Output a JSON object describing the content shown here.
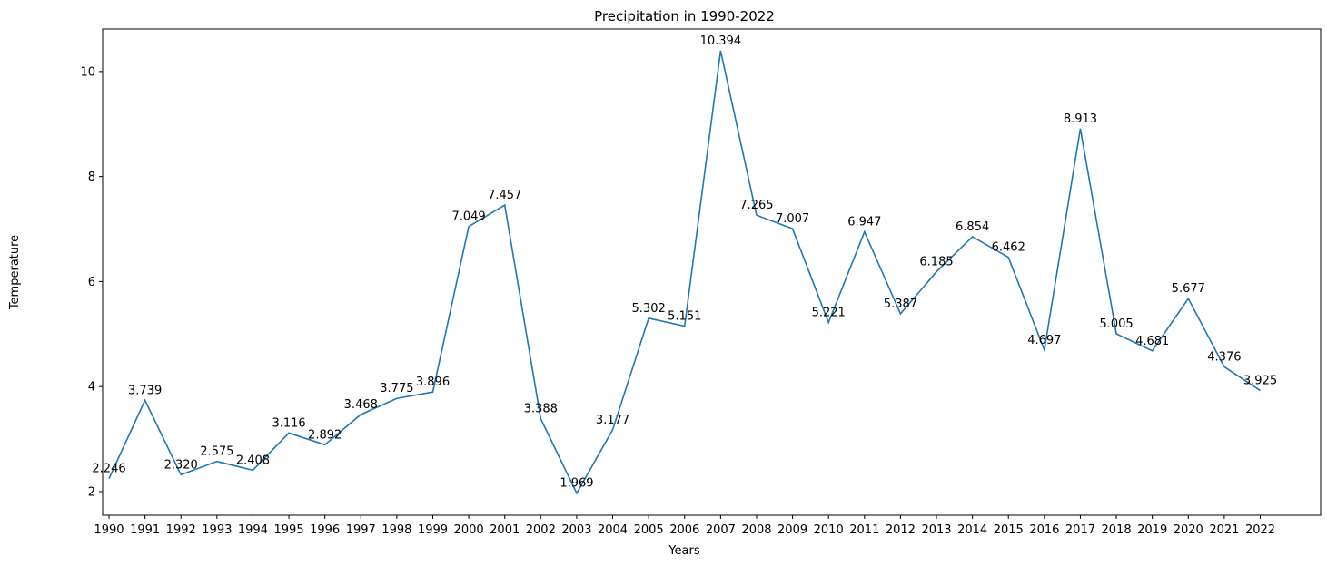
{
  "chart_data": {
    "type": "line",
    "title": "Precipitation in 1990-2022",
    "xlabel": "Years",
    "ylabel": "Temperature",
    "x": [
      "1990",
      "1991",
      "1992",
      "1993",
      "1994",
      "1995",
      "1996",
      "1997",
      "1998",
      "1999",
      "2000",
      "2001",
      "2002",
      "2003",
      "2004",
      "2005",
      "2006",
      "2007",
      "2008",
      "2009",
      "2010",
      "2011",
      "2012",
      "2013",
      "2014",
      "2015",
      "2016",
      "2017",
      "2018",
      "2019",
      "2020",
      "2021",
      "2022"
    ],
    "values": [
      2.246,
      3.739,
      2.32,
      2.575,
      2.408,
      3.116,
      2.892,
      3.468,
      3.775,
      3.896,
      7.049,
      7.457,
      3.388,
      1.969,
      3.177,
      5.302,
      5.151,
      10.394,
      7.265,
      7.007,
      5.221,
      6.947,
      5.387,
      6.185,
      6.854,
      6.462,
      4.697,
      8.913,
      5.005,
      4.681,
      5.677,
      4.376,
      3.925
    ],
    "labels": [
      "2.246",
      "3.739",
      "2.320",
      "2.575",
      "2.408",
      "3.116",
      "2.892",
      "3.468",
      "3.775",
      "3.896",
      "7.049",
      "7.457",
      "3.388",
      "1.969",
      "3.177",
      "5.302",
      "5.151",
      "10.394",
      "7.265",
      "7.007",
      "5.221",
      "6.947",
      "5.387",
      "6.185",
      "6.854",
      "6.462",
      "4.697",
      "8.913",
      "5.005",
      "4.681",
      "5.677",
      "4.376",
      "3.925"
    ],
    "yticks": [
      2,
      4,
      6,
      8,
      10
    ],
    "ytick_labels": [
      "2",
      "4",
      "6",
      "8",
      "10"
    ],
    "ylim": [
      1.55,
      10.81
    ],
    "grid": false,
    "line_color": "#1f77b4"
  }
}
